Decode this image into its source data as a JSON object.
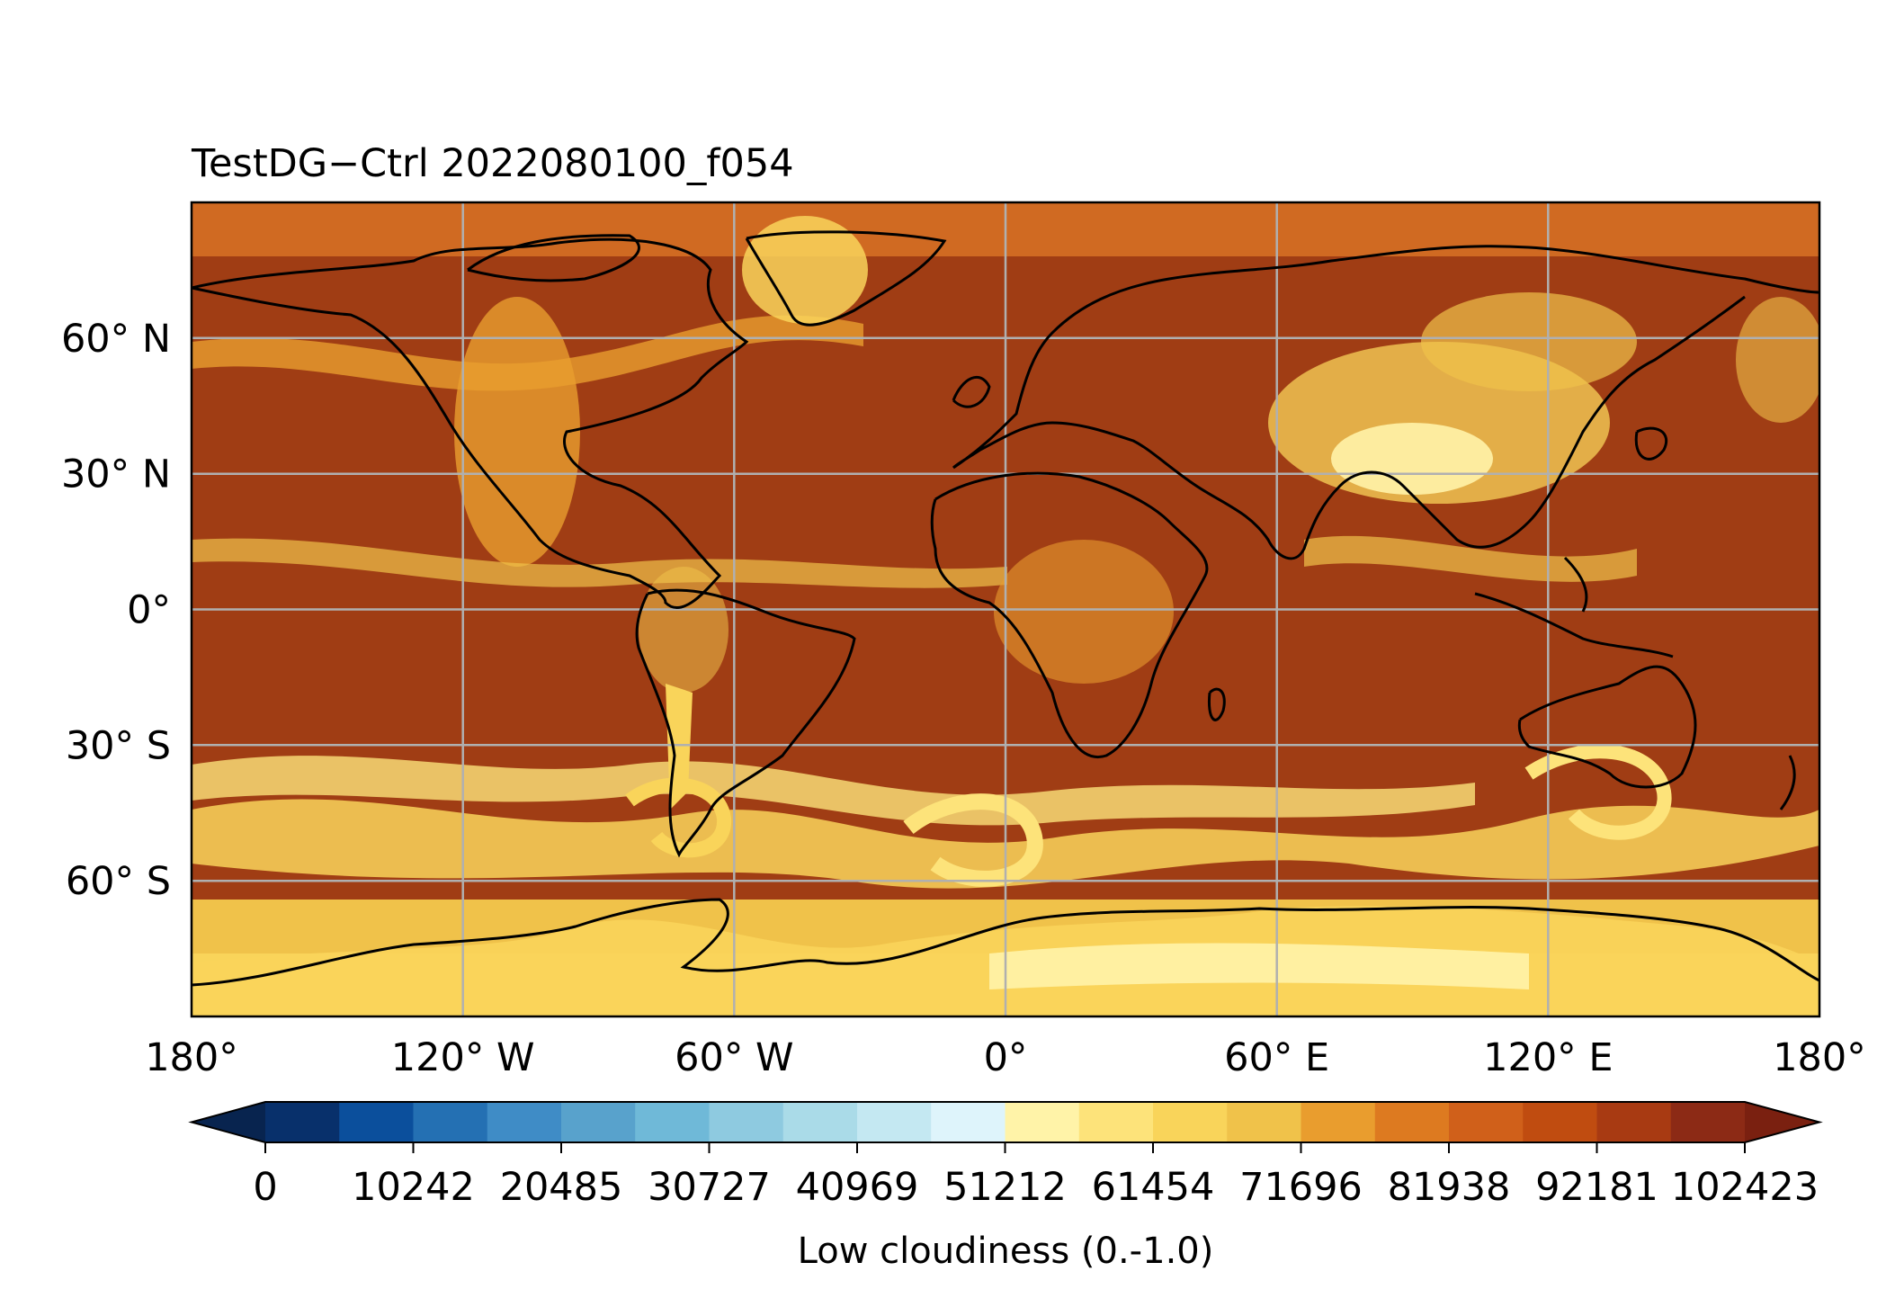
{
  "figure": {
    "title": "TestDG−Ctrl 2022080100_f054"
  },
  "map": {
    "projection": "PlateCarree",
    "lon_range": [
      -180,
      180
    ],
    "lat_range": [
      -90,
      90
    ],
    "gridlines": true,
    "coastlines": true,
    "lon_ticks": [
      {
        "value": -180,
        "label": "180°"
      },
      {
        "value": -120,
        "label": "120° W"
      },
      {
        "value": -60,
        "label": "60° W"
      },
      {
        "value": 0,
        "label": "0°"
      },
      {
        "value": 60,
        "label": "60° E"
      },
      {
        "value": 120,
        "label": "120° E"
      },
      {
        "value": 180,
        "label": "180°"
      }
    ],
    "lat_ticks": [
      {
        "value": 60,
        "label": "60° N"
      },
      {
        "value": 30,
        "label": "30° N"
      },
      {
        "value": 0,
        "label": "0°"
      },
      {
        "value": -30,
        "label": "30° S"
      },
      {
        "value": -60,
        "label": "60° S"
      }
    ]
  },
  "colorbar": {
    "label": "Low cloudiness (0.-1.0)",
    "extend": "both",
    "tick_labels": [
      "0",
      "10242",
      "20485",
      "30727",
      "40969",
      "51212",
      "61454",
      "71696",
      "81938",
      "92181",
      "102423"
    ],
    "colors": [
      "#08306b",
      "#0b4f9c",
      "#2470b3",
      "#3f8cc6",
      "#58a2cc",
      "#6fb9d8",
      "#8ecae0",
      "#aadbe8",
      "#c4e8f2",
      "#def4fb",
      "#fff3a8",
      "#fde37a",
      "#f9d45a",
      "#f0c24a",
      "#e99d2e",
      "#dd7a20",
      "#d0601a",
      "#c04c10",
      "#a83a12",
      "#8c2a15"
    ],
    "under_color": "#08244f",
    "over_color": "#7a2010"
  }
}
